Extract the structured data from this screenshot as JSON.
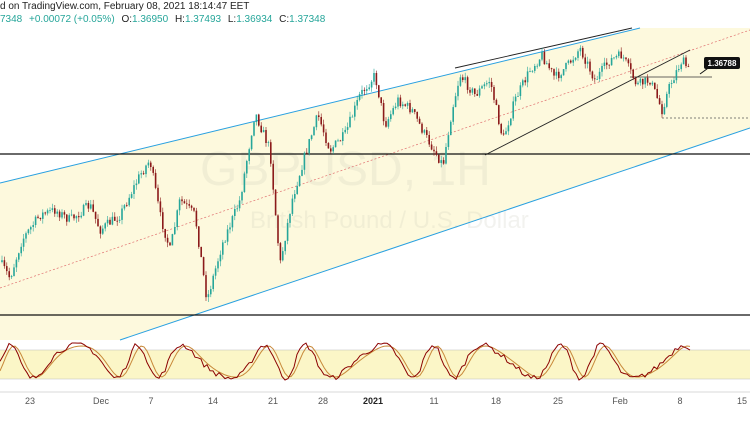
{
  "header": {
    "source": "d on TradingView.com, February 08, 2021 18:14:47 EET",
    "last": "7348",
    "change": "+0.00072 (+0.05%)",
    "o_label": "O:",
    "o": "1.36950",
    "h_label": "H:",
    "h": "1.37493",
    "l_label": "L:",
    "l": "1.36934",
    "c_label": "C:",
    "c": "1.37348"
  },
  "watermark": {
    "big": "GBPUSD, 1H",
    "small": "British Pound / U.S. Dollar"
  },
  "price_marker": {
    "value": "1.36788"
  },
  "colors": {
    "up": "#26a69a",
    "down": "#8b1a1a",
    "channel": "#29a0e0",
    "fill": "#fdf9dd",
    "osc_fill": "#fbf6c7",
    "stoch_k": "#8b0000",
    "stoch_d": "#c8893a"
  },
  "chart_data": {
    "type": "candlestick",
    "x_ticks": [
      "23",
      "Dec",
      "7",
      "14",
      "21",
      "28",
      "2021",
      "11",
      "18",
      "25",
      "Feb",
      "8",
      "15"
    ],
    "x_ticks_bold": [
      "2021"
    ],
    "y_unit": "GBPUSD",
    "y_approx_range": [
      1.29,
      1.38
    ],
    "last_close": 1.37348,
    "marker_price": 1.36788,
    "oscillator": "stochastic",
    "grid": false
  }
}
